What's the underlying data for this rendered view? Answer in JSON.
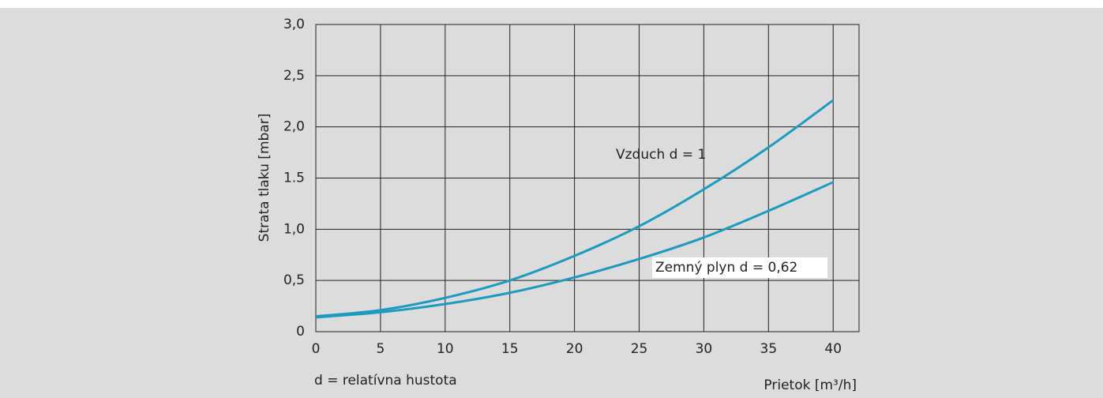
{
  "chart_data": {
    "type": "line",
    "x": [
      0,
      5,
      10,
      15,
      20,
      25,
      30,
      35,
      40
    ],
    "series": [
      {
        "name": "Vzduch d = 1",
        "color": "#1b9bbf",
        "values": [
          0.15,
          0.21,
          0.33,
          0.5,
          0.74,
          1.03,
          1.39,
          1.8,
          2.26
        ]
      },
      {
        "name": "Zemný plyn d = 0,62",
        "color": "#1b9bbf",
        "values": [
          0.14,
          0.19,
          0.27,
          0.38,
          0.53,
          0.71,
          0.92,
          1.18,
          1.46
        ]
      }
    ],
    "xlim": [
      0,
      42
    ],
    "xticks": [
      0,
      5,
      10,
      15,
      20,
      25,
      30,
      35,
      40
    ],
    "ylim": [
      0,
      3
    ],
    "yticks": [
      0,
      {
        "value": 0.5,
        "label": "0,5"
      },
      {
        "value": 1,
        "label": "1,0"
      },
      1.5,
      {
        "value": 2,
        "label": "2,0"
      },
      {
        "value": 2.5,
        "label": "2,5"
      },
      {
        "value": 3,
        "label": "3,0"
      }
    ],
    "xlabel": "Prietok [m³/h]",
    "ylabel": "Strata tlaku [mbar]",
    "note": "d = relatívna hustota",
    "grid": true
  }
}
